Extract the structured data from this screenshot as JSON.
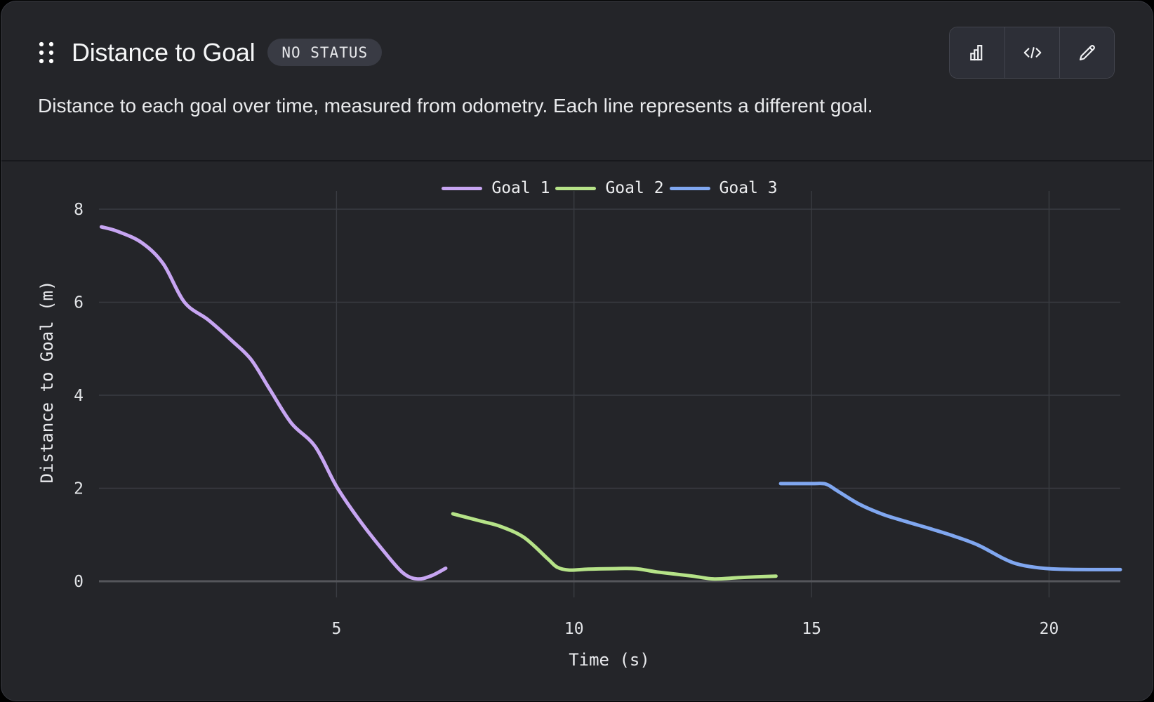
{
  "header": {
    "title": "Distance to Goal",
    "status_badge": "NO STATUS",
    "description": "Distance to each goal over time, measured from odometry. Each line represents a different goal.",
    "toolbar": [
      {
        "name": "chart-type-button",
        "icon": "bar-chart-icon"
      },
      {
        "name": "code-button",
        "icon": "code-icon"
      },
      {
        "name": "edit-button",
        "icon": "pencil-icon"
      }
    ]
  },
  "chart_data": {
    "type": "line",
    "title": "",
    "xlabel": "Time (s)",
    "ylabel": "Distance to Goal (m)",
    "xlim": [
      0,
      21.5
    ],
    "ylim": [
      0,
      8
    ],
    "xticks": [
      5,
      10,
      15,
      20
    ],
    "yticks": [
      0,
      2,
      4,
      6,
      8
    ],
    "grid": true,
    "legend_position": "top-center",
    "colors": {
      "background": "#242529",
      "grid": "#3a3c42",
      "axis_line": "#55565b",
      "tick_text": "#e2e4e7"
    },
    "series": [
      {
        "name": "Goal 1",
        "color": "#c7a5f2",
        "x": [
          0.05,
          0.4,
          0.9,
          1.35,
          1.8,
          2.3,
          2.8,
          3.2,
          3.6,
          4.05,
          4.55,
          5.0,
          5.5,
          6.0,
          6.4,
          6.7,
          7.0,
          7.3
        ],
        "y": [
          7.62,
          7.52,
          7.28,
          6.83,
          6.0,
          5.62,
          5.17,
          4.77,
          4.12,
          3.4,
          2.9,
          2.04,
          1.29,
          0.64,
          0.18,
          0.05,
          0.12,
          0.28
        ]
      },
      {
        "name": "Goal 2",
        "color": "#b6e388",
        "x": [
          7.45,
          8.05,
          8.45,
          8.95,
          9.45,
          9.65,
          9.9,
          10.3,
          10.8,
          11.3,
          11.75,
          12.5,
          12.95,
          13.5,
          14.25
        ],
        "y": [
          1.45,
          1.29,
          1.18,
          0.94,
          0.48,
          0.3,
          0.24,
          0.26,
          0.27,
          0.27,
          0.2,
          0.11,
          0.05,
          0.08,
          0.11
        ]
      },
      {
        "name": "Goal 3",
        "color": "#80a7f0",
        "x": [
          14.35,
          15.0,
          15.3,
          15.55,
          16.0,
          16.5,
          17.0,
          17.5,
          18.0,
          18.5,
          19.0,
          19.3,
          19.7,
          20.2,
          21.0,
          21.5
        ],
        "y": [
          2.1,
          2.1,
          2.09,
          1.94,
          1.66,
          1.44,
          1.28,
          1.13,
          0.97,
          0.78,
          0.51,
          0.38,
          0.3,
          0.26,
          0.25,
          0.25
        ]
      }
    ]
  }
}
